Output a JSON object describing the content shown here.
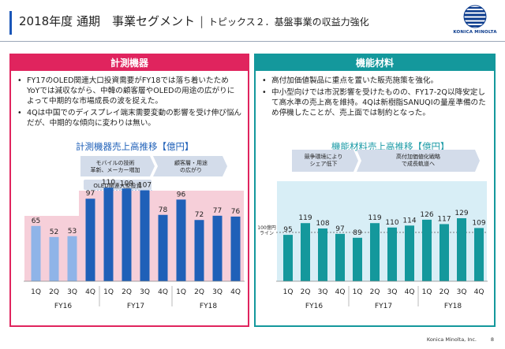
{
  "header": {
    "title": "2018年度 通期　事業セグメント",
    "separator": "|",
    "subtitle": "トピックス２．基盤事業の収益力強化"
  },
  "logo": {
    "text": "KONICA MINOLTA",
    "color": "#0a3a8c"
  },
  "left_panel": {
    "heading": "計測機器",
    "accent": "#e0245e",
    "bullets": [
      "FY17のOLED関連大口投資需要がFY18では落ち着いたためYoYでは減収ながら、中韓の顧客層やOLEDの用途の広がりによって中期的な市場成長の波を捉えた。",
      "4Qは中国でのディスプレイ端末需要変動の影響を受け伸び悩んだが、中期的な傾向に変わりは無い。"
    ],
    "chart_title": "計測機器売上高推移【億円】",
    "annotations": {
      "mobile": "モバイルの技術\n革新、メーカー増加",
      "customers": "顧客層・用途\nの広がり",
      "oled": "OLED関連大型投資"
    }
  },
  "right_panel": {
    "heading": "機能材料",
    "accent": "#14989c",
    "bullets": [
      "高付加価値製品に重点を置いた販売施策を強化。",
      "中小型向けでは市況影響を受けたものの、FY17-2Q以降安定して高水準の売上高を維持。4Qは新樹脂SANUQIの量産準備のため停機したことが、売上面では制約となった。"
    ],
    "chart_title": "機能材料売上高推移【億円】",
    "annotations": {
      "competition": "競争環境により\nシェア低下",
      "strategy": "高付加価値化戦略\nで成長軌道へ",
      "baseline": "100億円\nライン"
    }
  },
  "chart_data": [
    {
      "type": "bar",
      "title": "計測機器売上高推移【億円】",
      "categories": [
        "1Q",
        "2Q",
        "3Q",
        "4Q",
        "1Q",
        "2Q",
        "3Q",
        "4Q",
        "1Q",
        "2Q",
        "3Q",
        "4Q"
      ],
      "groups": [
        "FY16",
        "FY17",
        "FY18"
      ],
      "values": [
        65,
        52,
        53,
        97,
        110,
        109,
        107,
        78,
        96,
        72,
        77,
        76
      ],
      "colors": {
        "FY16": "#8fb4e8",
        "FY17": "#1f60b8",
        "FY18": "#1f60b8"
      }
    },
    {
      "type": "bar",
      "title": "機能材料売上高推移【億円】",
      "categories": [
        "1Q",
        "2Q",
        "3Q",
        "4Q",
        "1Q",
        "2Q",
        "3Q",
        "4Q",
        "1Q",
        "2Q",
        "3Q",
        "4Q"
      ],
      "groups": [
        "FY16",
        "FY17",
        "FY18"
      ],
      "values": [
        95,
        119,
        108,
        97,
        89,
        119,
        110,
        114,
        126,
        117,
        129,
        109
      ],
      "reference_line": 100,
      "colors": {
        "bars": "#14989c"
      }
    }
  ],
  "footer": {
    "company": "Konica Minolta, Inc.",
    "page": "8"
  }
}
